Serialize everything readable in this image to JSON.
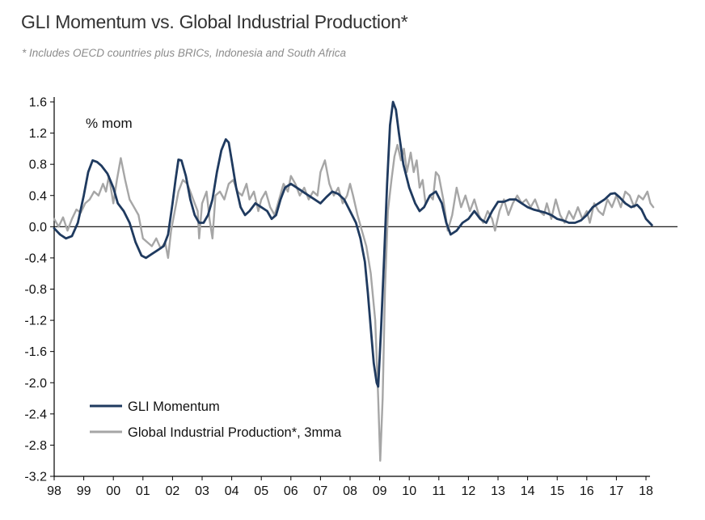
{
  "chart_data": {
    "type": "line",
    "title": "GLI Momentum vs. Global Industrial Production*",
    "subtitle": "* Includes OECD countries plus BRICs, Indonesia and South Africa",
    "unit_label": "% mom",
    "xlabel": "",
    "ylabel": "",
    "ylim": [
      -3.2,
      1.6
    ],
    "y_ticks": [
      "1.6",
      "1.2",
      "0.8",
      "0.4",
      "0.0",
      "-0.4",
      "-0.8",
      "-1.2",
      "-1.6",
      "-2.0",
      "-2.4",
      "-2.8",
      "-3.2"
    ],
    "x_tick_labels": [
      "98",
      "99",
      "00",
      "01",
      "02",
      "03",
      "04",
      "05",
      "06",
      "07",
      "08",
      "09",
      "10",
      "11",
      "12",
      "13",
      "14",
      "15",
      "16",
      "17",
      "18"
    ],
    "x_range": [
      1998.0,
      2018.5
    ],
    "legend_position": "bottom-left",
    "series": [
      {
        "name": "GLI Momentum",
        "color": "#1f3a5f",
        "points": [
          [
            1998.0,
            -0.02
          ],
          [
            1998.2,
            -0.1
          ],
          [
            1998.4,
            -0.15
          ],
          [
            1998.6,
            -0.12
          ],
          [
            1998.8,
            0.05
          ],
          [
            1999.0,
            0.4
          ],
          [
            1999.15,
            0.7
          ],
          [
            1999.3,
            0.85
          ],
          [
            1999.45,
            0.83
          ],
          [
            1999.6,
            0.78
          ],
          [
            1999.8,
            0.68
          ],
          [
            2000.0,
            0.5
          ],
          [
            2000.15,
            0.3
          ],
          [
            2000.35,
            0.2
          ],
          [
            2000.55,
            0.05
          ],
          [
            2000.75,
            -0.2
          ],
          [
            2000.95,
            -0.37
          ],
          [
            2001.1,
            -0.4
          ],
          [
            2001.3,
            -0.35
          ],
          [
            2001.5,
            -0.3
          ],
          [
            2001.7,
            -0.25
          ],
          [
            2001.85,
            -0.1
          ],
          [
            2002.0,
            0.3
          ],
          [
            2002.1,
            0.6
          ],
          [
            2002.2,
            0.86
          ],
          [
            2002.3,
            0.85
          ],
          [
            2002.45,
            0.65
          ],
          [
            2002.6,
            0.35
          ],
          [
            2002.75,
            0.15
          ],
          [
            2002.9,
            0.05
          ],
          [
            2003.05,
            0.05
          ],
          [
            2003.2,
            0.15
          ],
          [
            2003.35,
            0.35
          ],
          [
            2003.5,
            0.7
          ],
          [
            2003.65,
            0.98
          ],
          [
            2003.8,
            1.12
          ],
          [
            2003.9,
            1.08
          ],
          [
            2004.0,
            0.85
          ],
          [
            2004.15,
            0.5
          ],
          [
            2004.3,
            0.25
          ],
          [
            2004.45,
            0.15
          ],
          [
            2004.6,
            0.2
          ],
          [
            2004.8,
            0.3
          ],
          [
            2005.0,
            0.25
          ],
          [
            2005.2,
            0.2
          ],
          [
            2005.35,
            0.1
          ],
          [
            2005.5,
            0.15
          ],
          [
            2005.65,
            0.35
          ],
          [
            2005.8,
            0.5
          ],
          [
            2006.0,
            0.55
          ],
          [
            2006.2,
            0.5
          ],
          [
            2006.4,
            0.45
          ],
          [
            2006.6,
            0.4
          ],
          [
            2006.8,
            0.35
          ],
          [
            2007.0,
            0.3
          ],
          [
            2007.2,
            0.38
          ],
          [
            2007.4,
            0.45
          ],
          [
            2007.6,
            0.42
          ],
          [
            2007.8,
            0.35
          ],
          [
            2008.0,
            0.2
          ],
          [
            2008.2,
            0.05
          ],
          [
            2008.35,
            -0.15
          ],
          [
            2008.5,
            -0.45
          ],
          [
            2008.6,
            -0.85
          ],
          [
            2008.7,
            -1.3
          ],
          [
            2008.8,
            -1.75
          ],
          [
            2008.9,
            -2.0
          ],
          [
            2008.95,
            -2.05
          ],
          [
            2009.05,
            -1.3
          ],
          [
            2009.15,
            -0.4
          ],
          [
            2009.25,
            0.55
          ],
          [
            2009.35,
            1.3
          ],
          [
            2009.45,
            1.6
          ],
          [
            2009.55,
            1.5
          ],
          [
            2009.65,
            1.2
          ],
          [
            2009.8,
            0.8
          ],
          [
            2010.0,
            0.5
          ],
          [
            2010.2,
            0.3
          ],
          [
            2010.35,
            0.2
          ],
          [
            2010.5,
            0.25
          ],
          [
            2010.7,
            0.4
          ],
          [
            2010.9,
            0.45
          ],
          [
            2011.1,
            0.3
          ],
          [
            2011.25,
            0.05
          ],
          [
            2011.4,
            -0.1
          ],
          [
            2011.6,
            -0.05
          ],
          [
            2011.8,
            0.05
          ],
          [
            2012.0,
            0.1
          ],
          [
            2012.2,
            0.2
          ],
          [
            2012.4,
            0.1
          ],
          [
            2012.6,
            0.05
          ],
          [
            2012.8,
            0.2
          ],
          [
            2013.0,
            0.32
          ],
          [
            2013.2,
            0.32
          ],
          [
            2013.4,
            0.35
          ],
          [
            2013.6,
            0.35
          ],
          [
            2013.8,
            0.3
          ],
          [
            2014.0,
            0.25
          ],
          [
            2014.2,
            0.22
          ],
          [
            2014.4,
            0.2
          ],
          [
            2014.6,
            0.18
          ],
          [
            2014.8,
            0.15
          ],
          [
            2015.0,
            0.1
          ],
          [
            2015.2,
            0.08
          ],
          [
            2015.4,
            0.05
          ],
          [
            2015.6,
            0.05
          ],
          [
            2015.8,
            0.08
          ],
          [
            2016.0,
            0.15
          ],
          [
            2016.2,
            0.25
          ],
          [
            2016.4,
            0.3
          ],
          [
            2016.6,
            0.35
          ],
          [
            2016.8,
            0.42
          ],
          [
            2016.95,
            0.43
          ],
          [
            2017.1,
            0.38
          ],
          [
            2017.3,
            0.3
          ],
          [
            2017.5,
            0.25
          ],
          [
            2017.7,
            0.28
          ],
          [
            2017.85,
            0.22
          ],
          [
            2018.0,
            0.1
          ],
          [
            2018.2,
            0.02
          ]
        ]
      },
      {
        "name": "Global Industrial Production*, 3mma",
        "color": "#a6a6a6",
        "points": [
          [
            1998.0,
            0.1
          ],
          [
            1998.15,
            0.0
          ],
          [
            1998.3,
            0.12
          ],
          [
            1998.45,
            -0.05
          ],
          [
            1998.6,
            0.1
          ],
          [
            1998.75,
            0.22
          ],
          [
            1998.9,
            0.18
          ],
          [
            1999.05,
            0.3
          ],
          [
            1999.2,
            0.35
          ],
          [
            1999.35,
            0.45
          ],
          [
            1999.5,
            0.4
          ],
          [
            1999.65,
            0.55
          ],
          [
            1999.75,
            0.45
          ],
          [
            1999.85,
            0.65
          ],
          [
            2000.0,
            0.3
          ],
          [
            2000.12,
            0.6
          ],
          [
            2000.25,
            0.88
          ],
          [
            2000.4,
            0.6
          ],
          [
            2000.55,
            0.35
          ],
          [
            2000.7,
            0.25
          ],
          [
            2000.85,
            0.15
          ],
          [
            2001.0,
            -0.15
          ],
          [
            2001.15,
            -0.2
          ],
          [
            2001.3,
            -0.25
          ],
          [
            2001.45,
            -0.15
          ],
          [
            2001.6,
            -0.28
          ],
          [
            2001.75,
            -0.2
          ],
          [
            2001.85,
            -0.4
          ],
          [
            2001.95,
            -0.05
          ],
          [
            2002.1,
            0.25
          ],
          [
            2002.2,
            0.45
          ],
          [
            2002.35,
            0.6
          ],
          [
            2002.5,
            0.55
          ],
          [
            2002.6,
            0.45
          ],
          [
            2002.75,
            0.3
          ],
          [
            2002.85,
            0.2
          ],
          [
            2002.9,
            -0.15
          ],
          [
            2003.0,
            0.3
          ],
          [
            2003.15,
            0.45
          ],
          [
            2003.25,
            0.1
          ],
          [
            2003.35,
            -0.15
          ],
          [
            2003.45,
            0.4
          ],
          [
            2003.6,
            0.45
          ],
          [
            2003.75,
            0.35
          ],
          [
            2003.9,
            0.55
          ],
          [
            2004.05,
            0.6
          ],
          [
            2004.2,
            0.45
          ],
          [
            2004.35,
            0.4
          ],
          [
            2004.5,
            0.55
          ],
          [
            2004.6,
            0.35
          ],
          [
            2004.75,
            0.45
          ],
          [
            2004.9,
            0.2
          ],
          [
            2005.0,
            0.35
          ],
          [
            2005.15,
            0.45
          ],
          [
            2005.3,
            0.25
          ],
          [
            2005.45,
            0.15
          ],
          [
            2005.6,
            0.35
          ],
          [
            2005.75,
            0.55
          ],
          [
            2005.9,
            0.45
          ],
          [
            2006.0,
            0.65
          ],
          [
            2006.15,
            0.55
          ],
          [
            2006.3,
            0.4
          ],
          [
            2006.45,
            0.5
          ],
          [
            2006.6,
            0.35
          ],
          [
            2006.75,
            0.45
          ],
          [
            2006.9,
            0.4
          ],
          [
            2007.0,
            0.7
          ],
          [
            2007.15,
            0.85
          ],
          [
            2007.3,
            0.55
          ],
          [
            2007.45,
            0.4
          ],
          [
            2007.6,
            0.5
          ],
          [
            2007.75,
            0.3
          ],
          [
            2007.9,
            0.4
          ],
          [
            2008.0,
            0.55
          ],
          [
            2008.1,
            0.4
          ],
          [
            2008.25,
            0.15
          ],
          [
            2008.4,
            -0.05
          ],
          [
            2008.55,
            -0.25
          ],
          [
            2008.7,
            -0.6
          ],
          [
            2008.85,
            -1.2
          ],
          [
            2008.95,
            -2.2
          ],
          [
            2009.02,
            -3.0
          ],
          [
            2009.1,
            -2.2
          ],
          [
            2009.18,
            -0.8
          ],
          [
            2009.28,
            0.2
          ],
          [
            2009.4,
            0.6
          ],
          [
            2009.5,
            0.9
          ],
          [
            2009.6,
            1.05
          ],
          [
            2009.72,
            0.85
          ],
          [
            2009.82,
            1.0
          ],
          [
            2009.92,
            0.7
          ],
          [
            2010.05,
            0.95
          ],
          [
            2010.15,
            0.7
          ],
          [
            2010.25,
            0.85
          ],
          [
            2010.35,
            0.5
          ],
          [
            2010.45,
            0.6
          ],
          [
            2010.55,
            0.3
          ],
          [
            2010.7,
            0.4
          ],
          [
            2010.8,
            0.35
          ],
          [
            2010.9,
            0.7
          ],
          [
            2011.0,
            0.65
          ],
          [
            2011.15,
            0.35
          ],
          [
            2011.3,
            -0.05
          ],
          [
            2011.45,
            0.15
          ],
          [
            2011.6,
            0.5
          ],
          [
            2011.75,
            0.25
          ],
          [
            2011.9,
            0.4
          ],
          [
            2012.05,
            0.2
          ],
          [
            2012.2,
            0.35
          ],
          [
            2012.35,
            0.15
          ],
          [
            2012.5,
            0.05
          ],
          [
            2012.65,
            0.2
          ],
          [
            2012.8,
            0.1
          ],
          [
            2012.9,
            -0.05
          ],
          [
            2013.05,
            0.2
          ],
          [
            2013.2,
            0.35
          ],
          [
            2013.35,
            0.15
          ],
          [
            2013.5,
            0.3
          ],
          [
            2013.65,
            0.4
          ],
          [
            2013.8,
            0.3
          ],
          [
            2013.95,
            0.35
          ],
          [
            2014.1,
            0.25
          ],
          [
            2014.25,
            0.35
          ],
          [
            2014.4,
            0.2
          ],
          [
            2014.55,
            0.15
          ],
          [
            2014.65,
            0.3
          ],
          [
            2014.8,
            0.1
          ],
          [
            2014.95,
            0.35
          ],
          [
            2015.1,
            0.15
          ],
          [
            2015.25,
            0.05
          ],
          [
            2015.4,
            0.2
          ],
          [
            2015.55,
            0.1
          ],
          [
            2015.7,
            0.25
          ],
          [
            2015.85,
            0.1
          ],
          [
            2016.0,
            0.2
          ],
          [
            2016.1,
            0.05
          ],
          [
            2016.25,
            0.3
          ],
          [
            2016.4,
            0.2
          ],
          [
            2016.55,
            0.15
          ],
          [
            2016.7,
            0.35
          ],
          [
            2016.85,
            0.25
          ],
          [
            2017.0,
            0.4
          ],
          [
            2017.15,
            0.25
          ],
          [
            2017.3,
            0.45
          ],
          [
            2017.45,
            0.4
          ],
          [
            2017.6,
            0.25
          ],
          [
            2017.75,
            0.4
          ],
          [
            2017.9,
            0.35
          ],
          [
            2018.05,
            0.45
          ],
          [
            2018.15,
            0.3
          ],
          [
            2018.25,
            0.25
          ]
        ]
      }
    ]
  }
}
